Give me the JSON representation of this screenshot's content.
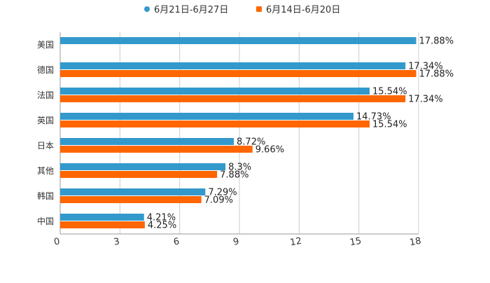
{
  "colors": {
    "series1": "#3399cc",
    "series2": "#ff6600",
    "grid": "#cccccc",
    "axis": "#999999",
    "text": "#333333"
  },
  "legend": {
    "items": [
      {
        "label": "6月21日-6月27日",
        "shape": "circle"
      },
      {
        "label": "6月14日-6月20日",
        "shape": "square"
      }
    ]
  },
  "chart_data": {
    "type": "bar",
    "orientation": "horizontal",
    "categories": [
      "美国",
      "德国",
      "法国",
      "英国",
      "日本",
      "其他",
      "韩国",
      "中国"
    ],
    "series": [
      {
        "name": "6月21日-6月27日",
        "values": [
          17.88,
          17.34,
          15.54,
          14.73,
          8.72,
          8.3,
          7.29,
          4.21
        ],
        "labels": [
          "17.88%",
          "17.34%",
          "15.54%",
          "14.73%",
          "8.72%",
          "8.3%",
          "7.29%",
          "4.21%"
        ]
      },
      {
        "name": "6月14日-6月20日",
        "values": [
          null,
          17.88,
          17.34,
          15.54,
          9.66,
          7.88,
          7.09,
          4.25
        ],
        "labels": [
          "",
          "17.88%",
          "17.34%",
          "15.54%",
          "9.66%",
          "7.88%",
          "7.09%",
          "4.25%"
        ]
      }
    ],
    "xlim": [
      0,
      18
    ],
    "xticks": [
      0,
      3,
      6,
      9,
      12,
      15,
      18
    ],
    "xtick_labels": [
      "0",
      "3",
      "6",
      "9",
      "12",
      "15",
      "18"
    ],
    "grid": true,
    "legend_position": "top-center",
    "title": "",
    "xlabel": "",
    "ylabel": ""
  }
}
